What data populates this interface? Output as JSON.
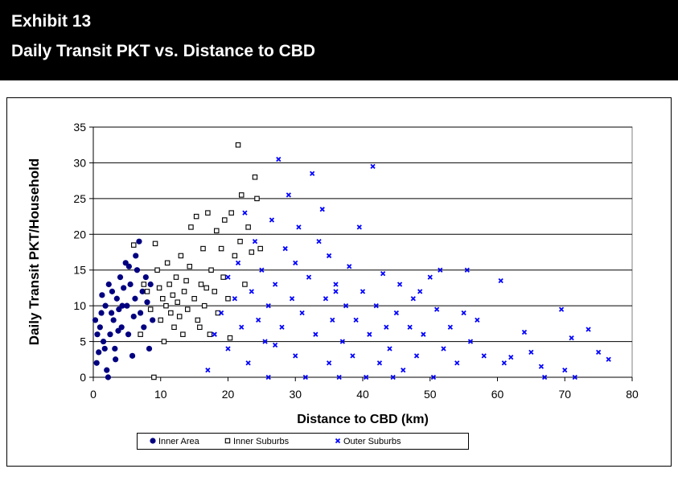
{
  "chart_data": {
    "type": "scatter",
    "exhibit": "Exhibit 13",
    "title": "Daily Transit PKT vs. Distance to CBD",
    "x_label": "Distance to CBD (km)",
    "y_label": "Daily Transit PKT/Household",
    "xlim": [
      0,
      80
    ],
    "xticks": [
      0,
      10,
      20,
      30,
      40,
      50,
      60,
      70,
      80
    ],
    "ylim": [
      0,
      35
    ],
    "yticks": [
      0,
      5,
      10,
      15,
      20,
      25,
      30,
      35
    ],
    "grid": true,
    "legend": "bottom",
    "series": [
      {
        "name": "Inner Area",
        "color": "#000080",
        "marker": "circle",
        "x": [
          0.3,
          0.5,
          0.8,
          1,
          1.2,
          1.5,
          1.8,
          2,
          2.2,
          2.5,
          2.8,
          3,
          3.2,
          3.5,
          3.8,
          4,
          4.2,
          4.5,
          4.8,
          5,
          5.2,
          5.5,
          5.8,
          6,
          6.2,
          6.5,
          6.8,
          7,
          7.3,
          7.5,
          7.8,
          8,
          8.3,
          8.5,
          8.8,
          1.3,
          2.3,
          3.3,
          0.6,
          4.3,
          5.3,
          6.3,
          3.7,
          2.7,
          1.7
        ],
        "values": [
          8,
          2,
          3.5,
          7,
          9,
          5,
          10,
          1,
          0,
          6,
          12,
          8,
          4,
          11,
          9.5,
          14,
          7,
          12.5,
          16,
          10,
          6,
          13,
          3,
          8.5,
          11,
          15,
          19,
          9,
          12,
          7,
          14,
          10.5,
          4,
          13,
          8,
          11.5,
          13,
          2.5,
          6,
          10,
          15.5,
          17,
          6.5,
          9,
          4
        ]
      },
      {
        "name": "Inner Suburbs",
        "color": "#000000",
        "marker": "square",
        "x": [
          6,
          7,
          8,
          9,
          9.2,
          9.5,
          10,
          10.3,
          10.5,
          11,
          11.3,
          11.5,
          12,
          12.3,
          12.5,
          13,
          13.3,
          13.5,
          14,
          14.3,
          14.5,
          15,
          15.3,
          15.5,
          16,
          16.3,
          16.5,
          17,
          17.3,
          17.5,
          18,
          18.3,
          18.5,
          19,
          19.3,
          19.5,
          20,
          20.3,
          20.5,
          21,
          21.5,
          21.8,
          22,
          22.5,
          23,
          23.5,
          24,
          24.3,
          24.8,
          11.8,
          12.8,
          13.8,
          15.8,
          16.8,
          10.8,
          9.8,
          8.5,
          7.5
        ],
        "values": [
          18.5,
          6,
          12,
          0,
          18.7,
          15,
          8,
          11,
          5,
          16,
          13,
          9,
          7,
          14,
          10.5,
          17,
          6,
          12,
          9.5,
          15.5,
          21,
          11,
          22.5,
          8,
          13,
          18,
          10,
          23,
          6,
          15,
          12,
          20.5,
          9,
          18,
          14,
          22,
          11,
          5.5,
          23,
          17,
          32.5,
          19,
          25.5,
          13,
          21,
          17.5,
          28,
          25,
          18,
          11.5,
          8.5,
          13.5,
          7,
          12.5,
          10,
          12.5,
          9.5,
          13
        ]
      },
      {
        "name": "Outer Suburbs",
        "color": "#0000ff",
        "marker": "x",
        "x": [
          17,
          18,
          19,
          20,
          20,
          21,
          21.5,
          22,
          22.5,
          23,
          23.5,
          24,
          24.5,
          25,
          25.5,
          26,
          26,
          26.5,
          27,
          27.5,
          28,
          28.5,
          29,
          29.5,
          30,
          30,
          30.5,
          31,
          31.5,
          32,
          32.5,
          33,
          33.5,
          34,
          34.5,
          35,
          35,
          35.5,
          36,
          36.5,
          37,
          37.5,
          38,
          38.5,
          39,
          39.5,
          40,
          40.5,
          41,
          41.5,
          42,
          42.5,
          43,
          43.5,
          44,
          45,
          45.5,
          46,
          47,
          47.5,
          48,
          49,
          50,
          50.5,
          51,
          51.5,
          52,
          53,
          54,
          55,
          55.5,
          56,
          57,
          58,
          60.5,
          61,
          62,
          64,
          65,
          66.5,
          67,
          69.5,
          71,
          73.5,
          75,
          76.5,
          70,
          71.5,
          27,
          36,
          44.5,
          48.5
        ],
        "values": [
          1,
          6,
          9,
          4,
          14,
          11,
          16,
          7,
          23,
          2,
          12,
          19,
          8,
          15,
          5,
          0,
          10,
          22,
          13,
          30.5,
          7,
          18,
          25.5,
          11,
          3,
          16,
          21,
          9,
          0,
          14,
          28.5,
          6,
          19,
          23.5,
          11,
          2,
          17,
          8,
          13,
          0,
          5,
          10,
          15.5,
          3,
          8,
          21,
          12,
          0,
          6,
          29.5,
          10,
          2,
          14.5,
          7,
          4,
          9,
          13,
          1,
          7,
          11,
          3,
          6,
          14,
          0,
          9.5,
          15,
          4,
          7,
          2,
          9,
          15,
          5,
          8,
          3,
          13.5,
          2,
          2.8,
          6.3,
          3.5,
          1.5,
          0,
          9.5,
          5.5,
          6.7,
          3.5,
          2.5,
          1,
          0,
          4.5,
          12,
          0,
          12
        ]
      }
    ]
  }
}
